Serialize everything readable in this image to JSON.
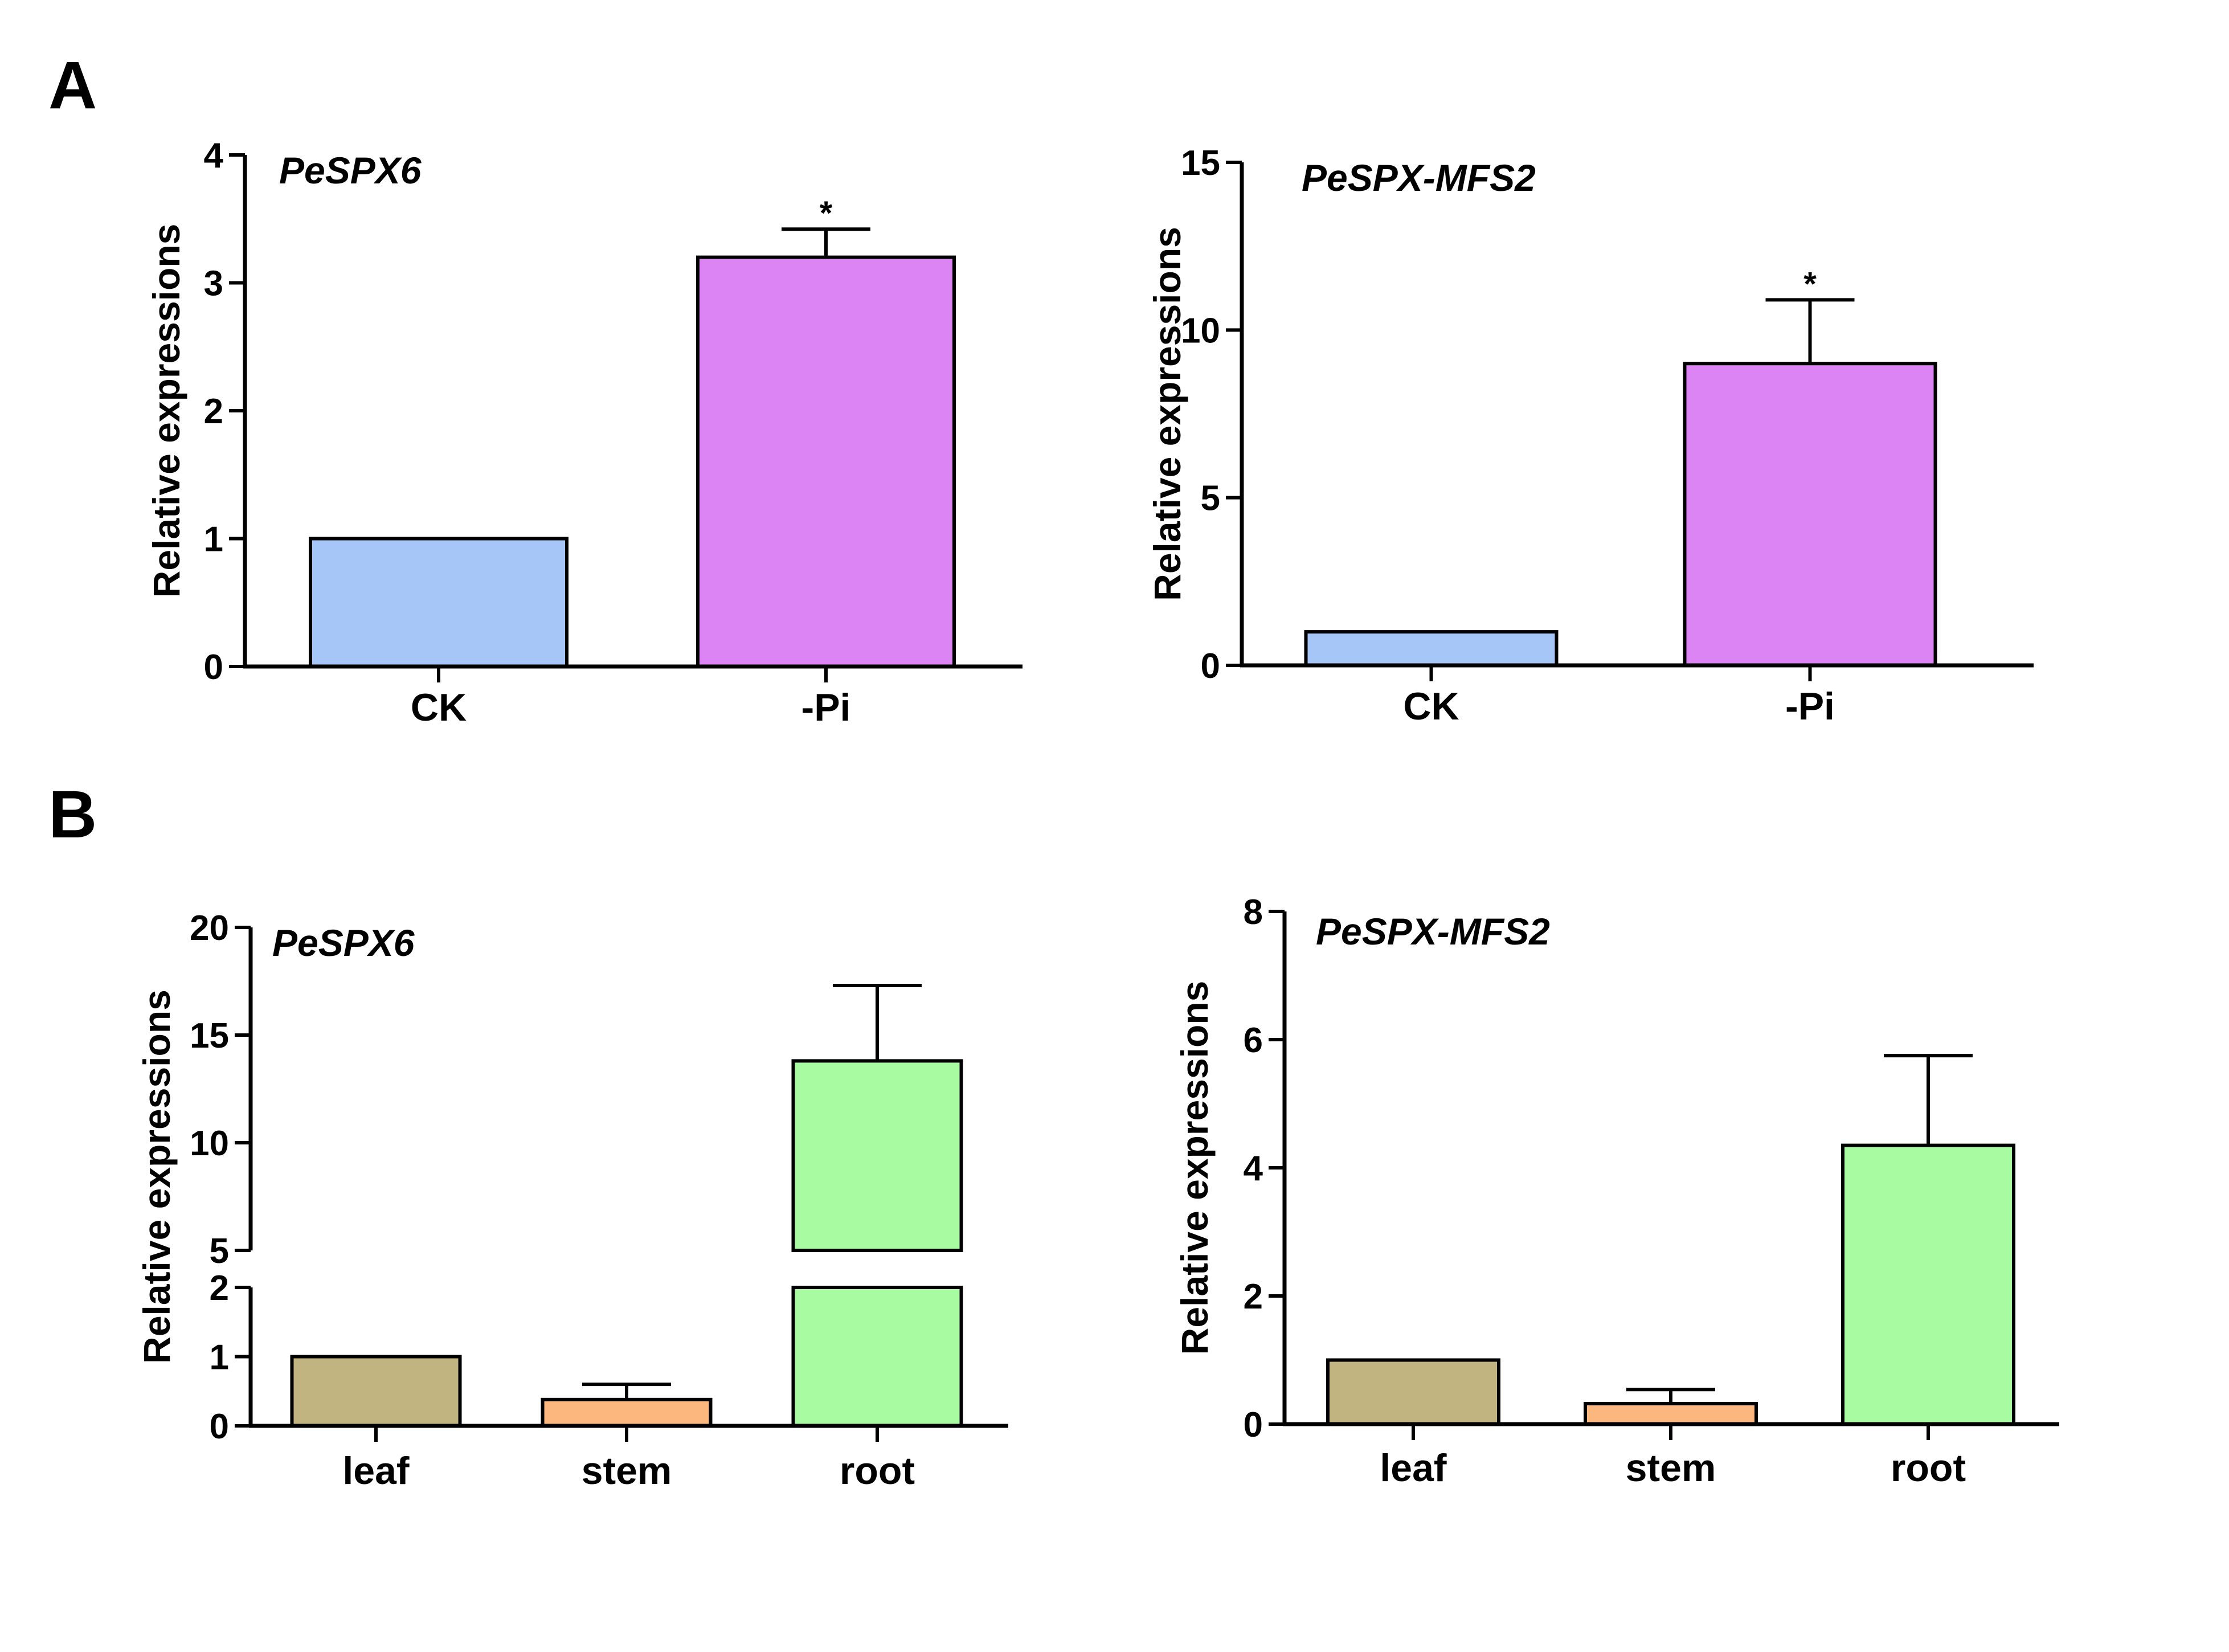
{
  "panels": {
    "a": "A",
    "b": "B"
  },
  "chart_data": [
    {
      "type": "bar",
      "panel": "A",
      "title": "PeSPX6",
      "ylabel": "Relative expressions",
      "categories": [
        "CK",
        "-Pi"
      ],
      "values": [
        1.0,
        3.2
      ],
      "errors": [
        0,
        0.22
      ],
      "significance": [
        "",
        "*"
      ],
      "colors": [
        "#a6c6f7",
        "#dd84f5"
      ],
      "ylim": [
        0,
        4
      ],
      "yticks": [
        0,
        1,
        2,
        3,
        4
      ]
    },
    {
      "type": "bar",
      "panel": "A",
      "title": "PeSPX-MFS2",
      "ylabel": "Relative expressions",
      "categories": [
        "CK",
        "-Pi"
      ],
      "values": [
        1.0,
        9.0
      ],
      "errors": [
        0,
        1.9
      ],
      "significance": [
        "",
        "*"
      ],
      "colors": [
        "#a6c6f7",
        "#dd84f5"
      ],
      "ylim": [
        0,
        15
      ],
      "yticks": [
        0,
        5,
        10,
        15
      ]
    },
    {
      "type": "bar",
      "panel": "B",
      "title": "PeSPX6",
      "ylabel": "Relative expressions",
      "categories": [
        "leaf",
        "stem",
        "root"
      ],
      "values": [
        1.0,
        0.38,
        13.8
      ],
      "errors": [
        0,
        0.22,
        3.5
      ],
      "colors": [
        "#c2b480",
        "#fbb77d",
        "#a8fba0"
      ],
      "ylim": [
        0,
        20
      ],
      "axis_break": [
        2,
        5
      ],
      "yticks": [
        0,
        1,
        2,
        5,
        10,
        15,
        20
      ]
    },
    {
      "type": "bar",
      "panel": "B",
      "title": "PeSPX-MFS2",
      "ylabel": "Relative expressions",
      "categories": [
        "leaf",
        "stem",
        "root"
      ],
      "values": [
        1.0,
        0.32,
        4.35
      ],
      "errors": [
        0,
        0.22,
        1.4
      ],
      "colors": [
        "#c2b480",
        "#fbb77d",
        "#a8fba0"
      ],
      "ylim": [
        0,
        8
      ],
      "yticks": [
        0,
        2,
        4,
        6,
        8
      ]
    }
  ]
}
